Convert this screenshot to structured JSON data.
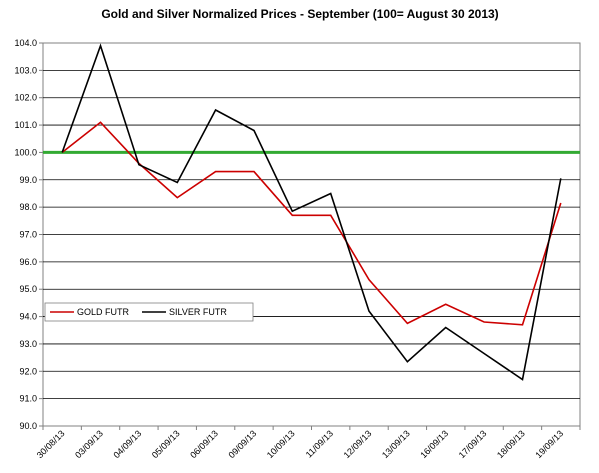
{
  "chart_data": {
    "type": "line",
    "title": "Gold and Silver Normalized Prices - September (100= August 30 2013)",
    "xlabel": "",
    "ylabel": "",
    "x": [
      "30/08/13",
      "03/09/13",
      "04/09/13",
      "05/09/13",
      "06/09/13",
      "09/09/13",
      "10/09/13",
      "11/09/13",
      "12/09/13",
      "13/09/13",
      "16/09/13",
      "17/09/13",
      "18/09/13",
      "19/09/13"
    ],
    "ylim": [
      90.0,
      104.0
    ],
    "yticks": [
      "90.0",
      "91.0",
      "92.0",
      "93.0",
      "94.0",
      "95.0",
      "96.0",
      "97.0",
      "98.0",
      "99.0",
      "100.0",
      "101.0",
      "102.0",
      "103.0",
      "104.0"
    ],
    "grid": true,
    "legend_position": "bottom-left",
    "series": [
      {
        "name": "GOLD  FUTR",
        "color": "#cc0000",
        "values": [
          100.0,
          101.1,
          99.6,
          98.35,
          99.3,
          99.3,
          97.7,
          97.7,
          95.35,
          93.75,
          94.45,
          93.8,
          93.7,
          98.15
        ]
      },
      {
        "name": "SILVER  FUTR",
        "color": "#000000",
        "values": [
          100.0,
          103.9,
          99.55,
          98.9,
          101.55,
          100.8,
          97.85,
          98.5,
          94.2,
          92.35,
          93.6,
          92.65,
          91.7,
          99.05
        ]
      }
    ],
    "reference_line": {
      "value": 100.0,
      "color": "#33aa33"
    }
  }
}
